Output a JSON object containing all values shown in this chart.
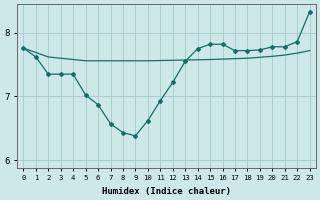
{
  "xlabel": "Humidex (Indice chaleur)",
  "bg_color": "#cce8e8",
  "grid_color": "#aacfcf",
  "line_color": "#1a6b6b",
  "line1_x": [
    0,
    1,
    2,
    3,
    4,
    5,
    6,
    7,
    8,
    9,
    10,
    11,
    12,
    13,
    14,
    15,
    16,
    17,
    18,
    19,
    20,
    21,
    22,
    23
  ],
  "line1_y": [
    7.76,
    7.62,
    7.35,
    7.35,
    7.35,
    7.02,
    6.87,
    6.57,
    6.43,
    6.38,
    6.62,
    6.93,
    7.22,
    7.55,
    7.75,
    7.82,
    7.82,
    7.72,
    7.72,
    7.73,
    7.78,
    7.78,
    7.86,
    8.33
  ],
  "line2_x": [
    0,
    2,
    5,
    10,
    15,
    18,
    20,
    21,
    22,
    23
  ],
  "line2_y": [
    7.76,
    7.62,
    7.56,
    7.56,
    7.58,
    7.6,
    7.63,
    7.65,
    7.68,
    7.72
  ],
  "ylim": [
    5.88,
    8.45
  ],
  "yticks": [
    6,
    7,
    8
  ],
  "xlim": [
    -0.5,
    23.5
  ],
  "xticks": [
    0,
    1,
    2,
    3,
    4,
    5,
    6,
    7,
    8,
    9,
    10,
    11,
    12,
    13,
    14,
    15,
    16,
    17,
    18,
    19,
    20,
    21,
    22,
    23
  ],
  "tick_fontsize": 5.2,
  "xlabel_fontsize": 6.5
}
